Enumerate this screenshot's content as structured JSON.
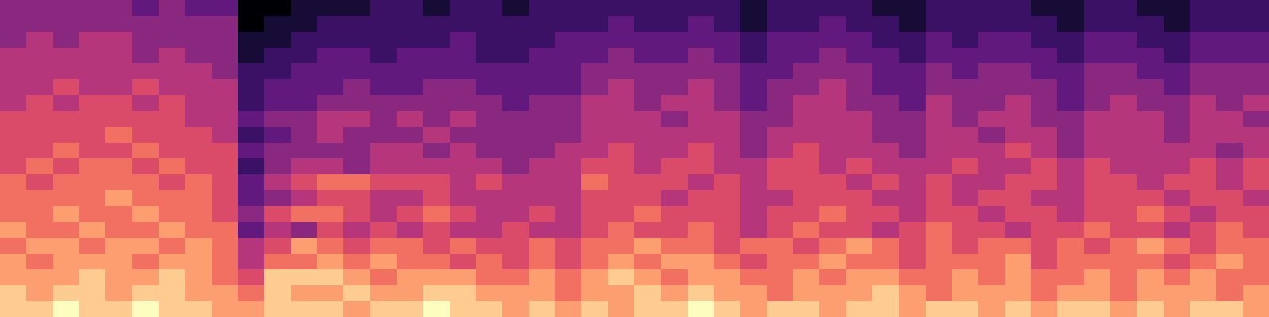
{
  "chart_data": {
    "type": "heatmap",
    "color": "magma",
    "zlim": [
      0,
      10
    ],
    "tick_labels": false,
    "cells": [
      [
        9,
        9,
        10,
        9,
        9,
        10,
        9,
        9,
        8,
        8,
        9,
        9,
        9,
        8,
        9,
        9,
        10,
        9,
        9,
        8,
        9,
        8,
        9,
        8,
        9,
        9,
        10,
        9,
        8,
        9,
        9,
        8,
        9,
        9,
        8,
        9,
        9,
        8,
        9,
        8,
        9,
        9,
        8,
        9,
        8,
        9,
        9,
        8
      ],
      [
        9,
        8,
        9,
        9,
        8,
        9,
        9,
        8,
        8,
        7,
        9,
        8,
        8,
        9,
        8,
        8,
        9,
        9,
        8,
        8,
        8,
        7,
        8,
        8,
        9,
        8,
        9,
        8,
        8,
        7,
        8,
        8,
        8,
        9,
        8,
        7,
        8,
        8,
        8,
        7,
        8,
        8,
        7,
        8,
        8,
        8,
        7,
        8
      ],
      [
        8,
        8,
        8,
        9,
        8,
        8,
        9,
        8,
        7,
        6,
        9,
        9,
        9,
        8,
        7,
        8,
        8,
        8,
        7,
        7,
        8,
        7,
        8,
        9,
        8,
        7,
        8,
        8,
        7,
        7,
        8,
        7,
        8,
        8,
        7,
        7,
        8,
        7,
        8,
        7,
        7,
        8,
        7,
        8,
        7,
        8,
        7,
        7
      ],
      [
        8,
        7,
        8,
        8,
        8,
        7,
        8,
        8,
        7,
        5,
        7,
        7,
        8,
        7,
        8,
        7,
        7,
        6,
        7,
        6,
        7,
        6,
        7,
        8,
        7,
        8,
        8,
        7,
        6,
        7,
        7,
        8,
        7,
        7,
        6,
        7,
        7,
        7,
        8,
        6,
        7,
        7,
        7,
        7,
        6,
        7,
        8,
        7
      ],
      [
        7,
        8,
        8,
        7,
        8,
        8,
        7,
        8,
        7,
        5,
        6,
        8,
        7,
        6,
        7,
        7,
        6,
        7,
        6,
        6,
        7,
        6,
        7,
        7,
        8,
        7,
        7,
        6,
        7,
        7,
        6,
        7,
        8,
        7,
        6,
        7,
        6,
        7,
        7,
        6,
        7,
        6,
        7,
        8,
        7,
        6,
        7,
        7
      ],
      [
        8,
        7,
        7,
        8,
        7,
        7,
        8,
        7,
        7,
        3,
        5,
        4,
        6,
        5,
        6,
        5,
        6,
        5,
        5,
        6,
        5,
        5,
        6,
        7,
        6,
        6,
        7,
        6,
        5,
        6,
        7,
        6,
        6,
        5,
        6,
        7,
        6,
        6,
        5,
        6,
        6,
        7,
        6,
        6,
        5,
        6,
        7,
        6
      ],
      [
        7,
        7,
        8,
        7,
        7,
        8,
        7,
        7,
        6,
        4,
        6,
        7,
        7,
        6,
        5,
        6,
        7,
        6,
        5,
        5,
        6,
        5,
        6,
        6,
        7,
        6,
        6,
        6,
        5,
        6,
        6,
        7,
        6,
        6,
        5,
        6,
        6,
        5,
        6,
        6,
        5,
        6,
        6,
        7,
        6,
        5,
        6,
        6
      ],
      [
        7,
        7,
        7,
        7,
        8,
        7,
        7,
        7,
        6,
        3,
        4,
        5,
        6,
        6,
        5,
        5,
        6,
        5,
        5,
        5,
        5,
        5,
        6,
        6,
        6,
        5,
        6,
        6,
        5,
        5,
        6,
        6,
        6,
        5,
        5,
        6,
        5,
        6,
        6,
        5,
        5,
        6,
        6,
        6,
        5,
        6,
        6,
        5
      ],
      [
        7,
        6,
        7,
        7,
        7,
        7,
        6,
        7,
        6,
        3,
        5,
        6,
        7,
        7,
        6,
        6,
        6,
        5,
        6,
        5,
        5,
        5,
        7,
        6,
        6,
        6,
        5,
        6,
        5,
        6,
        6,
        6,
        5,
        6,
        5,
        6,
        5,
        5,
        6,
        6,
        5,
        6,
        6,
        5,
        6,
        6,
        5,
        6
      ],
      [
        6,
        7,
        6,
        7,
        7,
        6,
        7,
        6,
        6,
        2,
        4,
        5,
        5,
        4,
        5,
        5,
        5,
        5,
        5,
        4,
        5,
        5,
        6,
        6,
        5,
        6,
        6,
        5,
        5,
        6,
        6,
        5,
        6,
        5,
        5,
        5,
        6,
        5,
        5,
        6,
        5,
        6,
        5,
        5,
        5,
        6,
        5,
        6
      ],
      [
        6,
        6,
        7,
        6,
        6,
        7,
        6,
        6,
        6,
        3,
        4,
        4,
        4,
        4,
        5,
        5,
        4,
        5,
        4,
        4,
        4,
        5,
        5,
        6,
        5,
        5,
        6,
        5,
        4,
        5,
        6,
        5,
        5,
        5,
        4,
        5,
        5,
        5,
        6,
        5,
        4,
        5,
        5,
        5,
        5,
        5,
        4,
        5
      ],
      [
        6,
        6,
        6,
        6,
        7,
        6,
        6,
        6,
        5,
        2,
        3,
        4,
        5,
        4,
        4,
        4,
        5,
        4,
        4,
        4,
        4,
        4,
        5,
        5,
        5,
        5,
        5,
        5,
        4,
        5,
        5,
        5,
        5,
        4,
        4,
        5,
        5,
        4,
        5,
        5,
        4,
        5,
        5,
        5,
        4,
        5,
        5,
        5
      ],
      [
        6,
        6,
        6,
        6,
        6,
        6,
        6,
        5,
        5,
        3,
        4,
        4,
        5,
        5,
        4,
        5,
        4,
        5,
        4,
        4,
        4,
        4,
        5,
        5,
        5,
        4,
        5,
        5,
        4,
        4,
        5,
        5,
        5,
        4,
        4,
        5,
        4,
        5,
        5,
        4,
        4,
        5,
        5,
        5,
        4,
        5,
        5,
        4
      ],
      [
        5,
        6,
        5,
        6,
        6,
        5,
        6,
        5,
        5,
        2,
        3,
        3,
        4,
        4,
        4,
        4,
        4,
        4,
        4,
        3,
        4,
        4,
        5,
        5,
        4,
        5,
        5,
        4,
        3,
        4,
        5,
        5,
        4,
        4,
        3,
        5,
        4,
        4,
        5,
        4,
        3,
        4,
        5,
        4,
        4,
        5,
        4,
        5
      ],
      [
        5,
        5,
        6,
        5,
        5,
        6,
        5,
        5,
        5,
        2,
        3,
        3,
        3,
        4,
        3,
        3,
        4,
        4,
        3,
        3,
        3,
        3,
        4,
        5,
        4,
        4,
        5,
        4,
        3,
        4,
        4,
        5,
        4,
        3,
        3,
        4,
        4,
        4,
        4,
        4,
        3,
        4,
        4,
        4,
        3,
        4,
        4,
        4
      ],
      [
        5,
        5,
        5,
        5,
        5,
        5,
        5,
        5,
        4,
        2,
        2,
        3,
        3,
        3,
        3,
        3,
        3,
        3,
        3,
        3,
        3,
        3,
        4,
        4,
        4,
        4,
        4,
        4,
        3,
        3,
        4,
        4,
        4,
        3,
        3,
        4,
        3,
        4,
        4,
        3,
        3,
        4,
        4,
        3,
        3,
        4,
        4,
        4
      ],
      [
        5,
        5,
        5,
        5,
        5,
        4,
        5,
        4,
        4,
        1,
        2,
        2,
        3,
        3,
        2,
        3,
        3,
        3,
        2,
        2,
        3,
        3,
        3,
        4,
        3,
        3,
        4,
        3,
        2,
        3,
        3,
        4,
        3,
        3,
        2,
        3,
        3,
        3,
        3,
        3,
        2,
        3,
        3,
        3,
        2,
        3,
        3,
        3
      ],
      [
        4,
        5,
        4,
        5,
        5,
        4,
        4,
        4,
        4,
        1,
        1,
        2,
        2,
        2,
        2,
        2,
        2,
        3,
        2,
        2,
        2,
        3,
        3,
        3,
        3,
        3,
        3,
        3,
        2,
        3,
        3,
        3,
        3,
        2,
        2,
        3,
        2,
        3,
        3,
        2,
        2,
        3,
        3,
        2,
        2,
        3,
        3,
        3
      ],
      [
        4,
        4,
        4,
        4,
        4,
        4,
        4,
        4,
        4,
        0,
        1,
        1,
        2,
        2,
        2,
        2,
        2,
        2,
        2,
        2,
        2,
        2,
        2,
        3,
        2,
        2,
        3,
        2,
        1,
        2,
        2,
        3,
        2,
        2,
        1,
        2,
        2,
        2,
        2,
        2,
        1,
        2,
        2,
        2,
        1,
        2,
        2,
        2
      ],
      [
        4,
        4,
        4,
        4,
        4,
        3,
        4,
        3,
        3,
        0,
        0,
        1,
        1,
        1,
        2,
        2,
        1,
        2,
        2,
        1,
        2,
        2,
        2,
        2,
        2,
        2,
        2,
        2,
        1,
        2,
        2,
        2,
        2,
        1,
        1,
        2,
        2,
        2,
        2,
        1,
        1,
        2,
        2,
        1,
        1,
        2,
        2,
        2
      ]
    ]
  }
}
